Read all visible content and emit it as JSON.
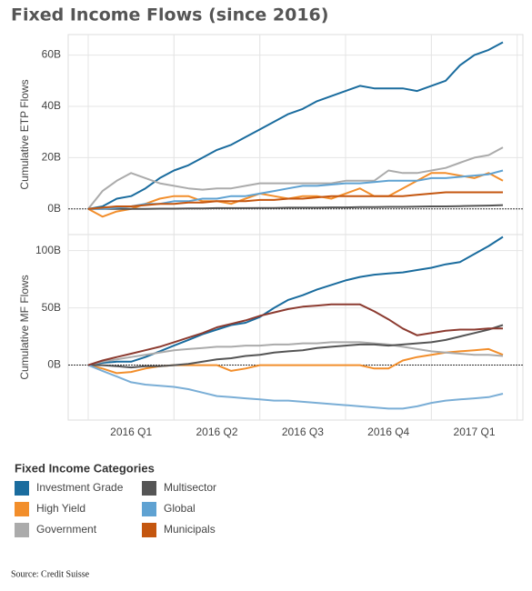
{
  "title": "Fixed Income Flows (since 2016)",
  "legend_title": "Fixed Income Categories",
  "source": "Source: Credit Suisse",
  "chart_data": [
    {
      "type": "line",
      "ylabel": "Cumulative ETP Flows",
      "ylim": [
        -10,
        68
      ],
      "yticks": [
        {
          "value": 0,
          "label": "0B"
        },
        {
          "value": 20,
          "label": "20B"
        },
        {
          "value": 40,
          "label": "40B"
        },
        {
          "value": 60,
          "label": "60B"
        }
      ],
      "grid": true,
      "series": [
        {
          "name": "Investment Grade",
          "color": "#1a6c9e",
          "values": [
            0,
            1,
            4,
            5,
            8,
            12,
            15,
            17,
            20,
            23,
            25,
            28,
            31,
            34,
            37,
            39,
            42,
            44,
            46,
            48,
            47,
            47,
            47,
            46,
            48,
            50,
            56,
            60,
            62,
            65
          ]
        },
        {
          "name": "High Yield",
          "color": "#f28e2b",
          "values": [
            0,
            -3,
            -1,
            0,
            2,
            4,
            5,
            5,
            3,
            3,
            2,
            4,
            6,
            5,
            4,
            5,
            5,
            4,
            6,
            8,
            5,
            5,
            8,
            11,
            14,
            14,
            13,
            12,
            14,
            11
          ]
        },
        {
          "name": "Government",
          "color": "#ababab",
          "values": [
            0,
            7,
            11,
            14,
            12,
            10,
            9,
            8,
            7.5,
            8,
            8,
            9,
            10,
            10,
            10,
            10,
            10,
            10,
            11,
            11,
            11,
            15,
            14,
            14,
            15,
            16,
            18,
            20,
            21,
            24
          ]
        },
        {
          "name": "Multisector",
          "color": "#555555",
          "values": [
            0,
            0,
            0,
            0,
            0,
            0.1,
            0.1,
            0.2,
            0.2,
            0.3,
            0.3,
            0.3,
            0.4,
            0.4,
            0.5,
            0.5,
            0.5,
            0.6,
            0.6,
            0.7,
            0.7,
            0.8,
            0.8,
            0.9,
            1,
            1,
            1.1,
            1.2,
            1.3,
            1.5
          ]
        },
        {
          "name": "Global",
          "color": "#5fa2d2",
          "values": [
            0,
            0,
            0.5,
            1,
            2,
            2,
            3,
            3,
            4,
            4,
            5,
            5,
            6,
            7,
            8,
            9,
            9,
            9.5,
            10,
            10,
            10.5,
            11,
            11,
            11,
            12,
            12,
            12.5,
            13,
            13.5,
            15
          ]
        },
        {
          "name": "Municipals",
          "color": "#c4560f",
          "values": [
            0,
            0.5,
            1,
            1,
            1.5,
            2,
            2,
            2.5,
            2.5,
            3,
            3,
            3,
            3.5,
            3.5,
            4,
            4,
            4.5,
            5,
            5,
            5,
            5,
            5,
            5,
            5.5,
            6,
            6.5,
            6.5,
            6.5,
            6.5,
            6.5
          ]
        }
      ]
    },
    {
      "type": "line",
      "ylabel": "Cumulative MF Flows",
      "ylim": [
        -48,
        114
      ],
      "yticks": [
        {
          "value": 0,
          "label": "0B"
        },
        {
          "value": 50,
          "label": "50B"
        },
        {
          "value": 100,
          "label": "100B"
        }
      ],
      "grid": true,
      "categories": [
        null,
        null,
        null,
        "2016 Q1",
        null,
        null,
        null,
        null,
        null,
        "2016 Q2",
        null,
        null,
        null,
        null,
        null,
        "2016 Q3",
        null,
        null,
        null,
        null,
        null,
        "2016 Q4",
        null,
        null,
        null,
        null,
        null,
        "2017 Q1",
        null,
        null
      ],
      "series": [
        {
          "name": "Investment Grade",
          "color": "#1a6c9e",
          "values": [
            0,
            2,
            3,
            3,
            7,
            12,
            17,
            22,
            27,
            31,
            35,
            37,
            42,
            50,
            57,
            61,
            66,
            70,
            74,
            77,
            79,
            80,
            81,
            83,
            85,
            88,
            90,
            97,
            104,
            112
          ]
        },
        {
          "name": "High Yield",
          "color": "#f28e2b",
          "values": [
            0,
            -3,
            -7,
            -6,
            -3,
            -1,
            0,
            0,
            0,
            0,
            -5,
            -3,
            0,
            0,
            0,
            0,
            0,
            0,
            0,
            0,
            -3,
            -3,
            4,
            7,
            9,
            11,
            12,
            13,
            14,
            9
          ]
        },
        {
          "name": "Government",
          "color": "#ababab",
          "values": [
            0,
            3,
            5,
            7,
            9,
            11,
            13,
            14,
            15,
            16,
            16,
            17,
            17,
            18,
            18,
            19,
            19,
            20,
            20,
            20,
            19,
            18,
            16,
            14,
            12,
            11,
            10,
            9,
            9,
            8
          ]
        },
        {
          "name": "Multisector",
          "color": "#555555",
          "values": [
            0,
            0,
            -1,
            -2,
            -1,
            -1,
            0,
            1,
            3,
            5,
            6,
            8,
            9,
            11,
            12,
            13,
            15,
            16,
            17,
            18,
            18,
            17,
            18,
            19,
            20,
            22,
            25,
            28,
            31,
            35
          ]
        },
        {
          "name": "Global",
          "color": "#7aaed6",
          "values": [
            0,
            -5,
            -10,
            -15,
            -17,
            -18,
            -19,
            -21,
            -24,
            -27,
            -28,
            -29,
            -30,
            -31,
            -31,
            -32,
            -33,
            -34,
            -35,
            -36,
            -37,
            -38,
            -38,
            -36,
            -33,
            -31,
            -30,
            -29,
            -28,
            -25
          ]
        },
        {
          "name": "Municipals",
          "color": "#8c3b30",
          "values": [
            0,
            4,
            7,
            10,
            13,
            16,
            20,
            24,
            28,
            33,
            36,
            39,
            43,
            46,
            49,
            51,
            52,
            53,
            53,
            53,
            47,
            40,
            32,
            26,
            28,
            30,
            31,
            31,
            32,
            32
          ]
        }
      ]
    }
  ]
}
